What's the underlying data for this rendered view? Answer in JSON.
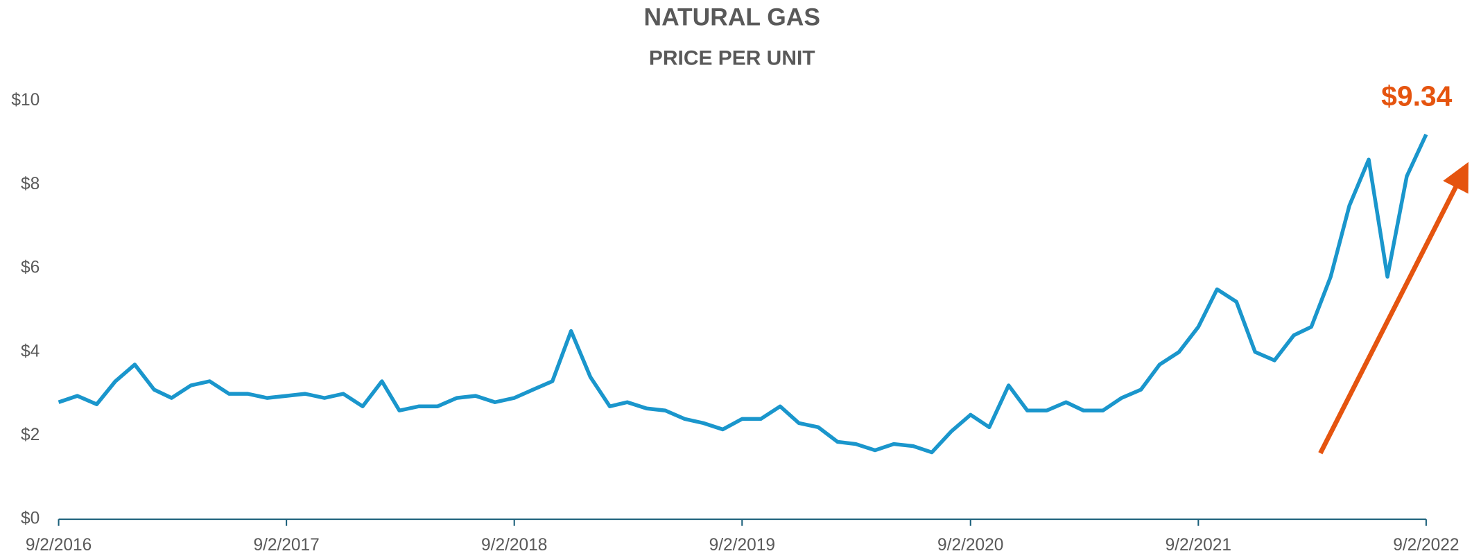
{
  "chart_data": {
    "type": "line",
    "title": "NATURAL GAS",
    "subtitle": "PRICE PER UNIT",
    "annotation": "$9.34",
    "x": [
      "9/2/2016",
      "10/2/2016",
      "11/2/2016",
      "12/2/2016",
      "1/2/2017",
      "2/2/2017",
      "3/2/2017",
      "4/2/2017",
      "5/2/2017",
      "6/2/2017",
      "7/2/2017",
      "8/2/2017",
      "9/2/2017",
      "10/2/2017",
      "11/2/2017",
      "12/2/2017",
      "1/2/2018",
      "2/2/2018",
      "3/2/2018",
      "4/2/2018",
      "5/2/2018",
      "6/2/2018",
      "7/2/2018",
      "8/2/2018",
      "9/2/2018",
      "10/2/2018",
      "11/2/2018",
      "12/2/2018",
      "1/2/2019",
      "2/2/2019",
      "3/2/2019",
      "4/2/2019",
      "5/2/2019",
      "6/2/2019",
      "7/2/2019",
      "8/2/2019",
      "9/2/2019",
      "10/2/2019",
      "11/2/2019",
      "12/2/2019",
      "1/2/2020",
      "2/2/2020",
      "3/2/2020",
      "4/2/2020",
      "5/2/2020",
      "6/2/2020",
      "7/2/2020",
      "8/2/2020",
      "9/2/2020",
      "10/2/2020",
      "11/2/2020",
      "12/2/2020",
      "1/2/2021",
      "2/2/2021",
      "3/2/2021",
      "4/2/2021",
      "5/2/2021",
      "6/2/2021",
      "7/2/2021",
      "8/2/2021",
      "9/2/2021",
      "10/2/2021",
      "11/2/2021",
      "12/2/2021",
      "1/2/2022",
      "2/2/2022",
      "3/2/2022",
      "4/2/2022",
      "5/2/2022",
      "6/2/2022",
      "7/2/2022",
      "8/2/2022",
      "9/2/2022"
    ],
    "series": [
      {
        "name": "Natural Gas",
        "color": "#1a96cc",
        "values": [
          2.8,
          2.95,
          2.75,
          3.3,
          3.7,
          3.1,
          2.9,
          3.2,
          3.3,
          3.0,
          3.0,
          2.9,
          2.95,
          3.0,
          2.9,
          3.0,
          2.7,
          3.3,
          2.6,
          2.7,
          2.7,
          2.9,
          2.95,
          2.8,
          2.9,
          3.1,
          3.3,
          4.5,
          3.4,
          2.7,
          2.8,
          2.65,
          2.6,
          2.4,
          2.3,
          2.15,
          2.4,
          2.4,
          2.7,
          2.3,
          2.2,
          1.85,
          1.8,
          1.65,
          1.8,
          1.75,
          1.6,
          2.1,
          2.5,
          2.2,
          3.2,
          2.6,
          2.6,
          2.8,
          2.6,
          2.6,
          2.9,
          3.1,
          3.7,
          4.0,
          4.6,
          5.5,
          5.2,
          4.0,
          3.8,
          4.4,
          4.6,
          5.8,
          7.5,
          8.6,
          5.8,
          8.2,
          9.2
        ]
      }
    ],
    "xlim": [
      "9/2/2016",
      "9/2/2022"
    ],
    "xticks": [
      "9/2/2016",
      "9/2/2017",
      "9/2/2018",
      "9/2/2019",
      "9/2/2020",
      "9/2/2021",
      "9/2/2022"
    ],
    "ylim": [
      0,
      10
    ],
    "yticks": [
      {
        "value": 0,
        "label": "$0"
      },
      {
        "value": 2,
        "label": "$2"
      },
      {
        "value": 4,
        "label": "$4"
      },
      {
        "value": 6,
        "label": "$6"
      },
      {
        "value": 8,
        "label": "$8"
      },
      {
        "value": 10,
        "label": "$10"
      }
    ],
    "grid": false
  }
}
